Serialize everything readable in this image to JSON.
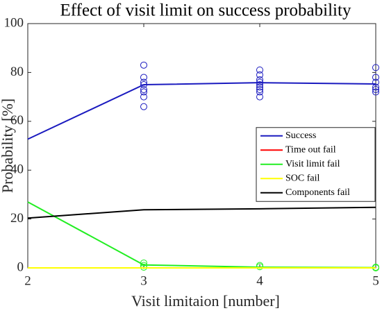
{
  "chart_data": {
    "type": "line",
    "title": "Effect of visit limit on success probability",
    "xlabel": "Visit limitaion [number]",
    "ylabel": "Probability [%]",
    "x": [
      2,
      3,
      4,
      5
    ],
    "xlim": [
      2,
      5
    ],
    "xticks": [
      2,
      3,
      4,
      5
    ],
    "ylim": [
      0,
      100
    ],
    "yticks": [
      0,
      20,
      40,
      60,
      80,
      100
    ],
    "legend": "east",
    "series": [
      {
        "name": "Success",
        "color": "#1a1abf",
        "values": [
          52.7,
          75,
          75.8,
          75.3
        ]
      },
      {
        "name": "Time out fail",
        "color": "#ff0000",
        "values": [
          0,
          0,
          0,
          0
        ]
      },
      {
        "name": "Visit limit fail",
        "color": "#22ee22",
        "values": [
          27,
          1.2,
          0.3,
          0.1
        ]
      },
      {
        "name": "SOC fail",
        "color": "#ffff00",
        "values": [
          0,
          0,
          0,
          0
        ]
      },
      {
        "name": "Components fail",
        "color": "#000000",
        "values": [
          20.4,
          23.8,
          24.2,
          24.8
        ]
      }
    ],
    "points": [
      {
        "color": "#1a1abf",
        "x": [
          3,
          3,
          3,
          3,
          3,
          3,
          3,
          3,
          4,
          4,
          4,
          4,
          4,
          4,
          4,
          4,
          4,
          5,
          5,
          5,
          5,
          5,
          5
        ],
        "values": [
          83,
          78,
          76,
          75,
          73,
          72,
          70,
          66,
          81,
          79,
          77,
          76,
          75,
          74,
          73,
          72,
          70,
          82,
          78,
          76,
          74,
          73,
          72
        ]
      },
      {
        "color": "#22ee22",
        "x": [
          3,
          3,
          3,
          4,
          4,
          5,
          5
        ],
        "values": [
          2,
          1,
          0.3,
          1,
          0.5,
          0.3,
          0
        ]
      }
    ]
  }
}
